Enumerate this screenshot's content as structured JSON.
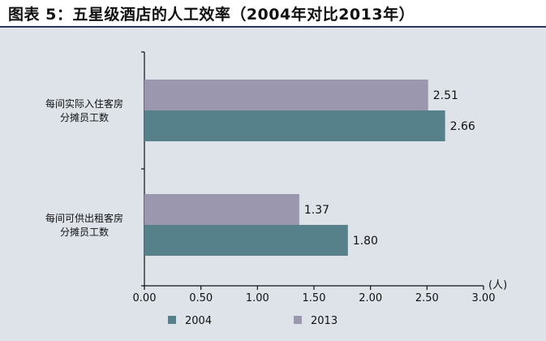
{
  "title": "图表 5：五星级酒店的人工效率（2004年对比2013年）",
  "colors": {
    "2004": "#56818b",
    "2013": "#9a97ae",
    "background": "#dde3e9",
    "title_rule": "#2e3560"
  },
  "chart_data": {
    "type": "bar",
    "orientation": "horizontal",
    "categories": [
      [
        "每间实际入住客房",
        "分摊员工数"
      ],
      [
        "每间可供出租客房",
        "分摊员工数"
      ]
    ],
    "series": [
      {
        "name": "2013",
        "values": [
          2.51,
          1.37
        ],
        "labels": [
          "2.51",
          "1.37"
        ]
      },
      {
        "name": "2004",
        "values": [
          2.66,
          1.8
        ],
        "labels": [
          "2.66",
          "1.80"
        ]
      }
    ],
    "xlim": [
      0,
      3
    ],
    "xticks": [
      "0.00",
      "0.50",
      "1.00",
      "1.50",
      "2.00",
      "2.50",
      "3.00"
    ],
    "xunit": "(人)",
    "legend": [
      "2004",
      "2013"
    ],
    "legend_position": "bottom",
    "grid": false
  }
}
